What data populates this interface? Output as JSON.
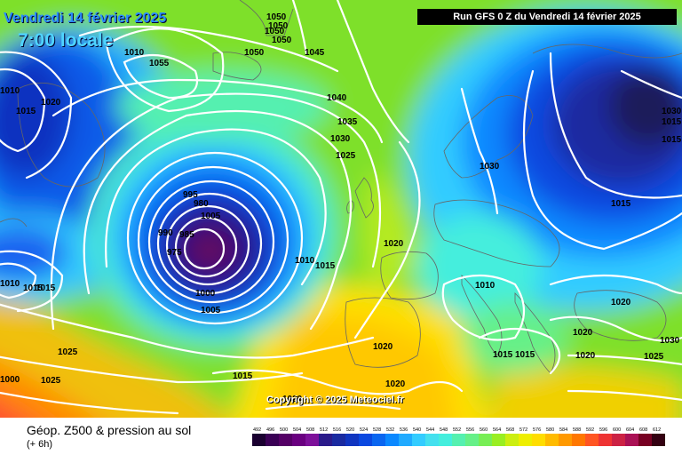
{
  "header": {
    "date": "Vendredi 14 février 2025",
    "time": "7:00 locale",
    "run": "Run GFS 0 Z du Vendredi 14 février 2025"
  },
  "copyright": "Copyright © 2025 Meteociel.fr",
  "footer": {
    "title": "Géop. Z500 & pression au sol",
    "subtitle": "(+ 6h)"
  },
  "isobar_labels": [
    "1050",
    "1050",
    "1050",
    "1050",
    "1050",
    "1055",
    "1045",
    "1040",
    "1035",
    "1030",
    "1025",
    "1020",
    "1015",
    "1010",
    "1005",
    "1000",
    "995",
    "990",
    "985",
    "980",
    "975",
    "1010",
    "1015",
    "1020",
    "1025",
    "1025",
    "1015",
    "1020",
    "1020",
    "1030",
    "1010",
    "1015",
    "1020",
    "1020",
    "1015",
    "1020",
    "1030",
    "1025",
    "1015",
    "1010",
    "1015",
    "1010",
    "1015",
    "1000",
    "1005",
    "1020",
    "1030",
    "1015",
    "1015"
  ],
  "scale": {
    "ticks": [
      "492",
      "496",
      "500",
      "504",
      "508",
      "512",
      "516",
      "520",
      "524",
      "528",
      "532",
      "536",
      "540",
      "544",
      "548",
      "552",
      "556",
      "560",
      "564",
      "568",
      "572",
      "576",
      "580",
      "584",
      "588",
      "592",
      "596",
      "600",
      "604",
      "608",
      "612"
    ],
    "colors": [
      "#1a0030",
      "#3a0055",
      "#550066",
      "#6a0080",
      "#7d109a",
      "#2a1a8a",
      "#1a2aa0",
      "#1035c0",
      "#0a48e0",
      "#0a66f0",
      "#0a88ff",
      "#20aaff",
      "#33ccff",
      "#44e0ee",
      "#44eedd",
      "#55f0b0",
      "#66f088",
      "#77ee55",
      "#99ee22",
      "#ccee11",
      "#eeee00",
      "#ffdd00",
      "#ffbb00",
      "#ff9900",
      "#ff7700",
      "#ff5522",
      "#ee3333",
      "#cc2244",
      "#aa1155",
      "#770022",
      "#330011"
    ]
  }
}
